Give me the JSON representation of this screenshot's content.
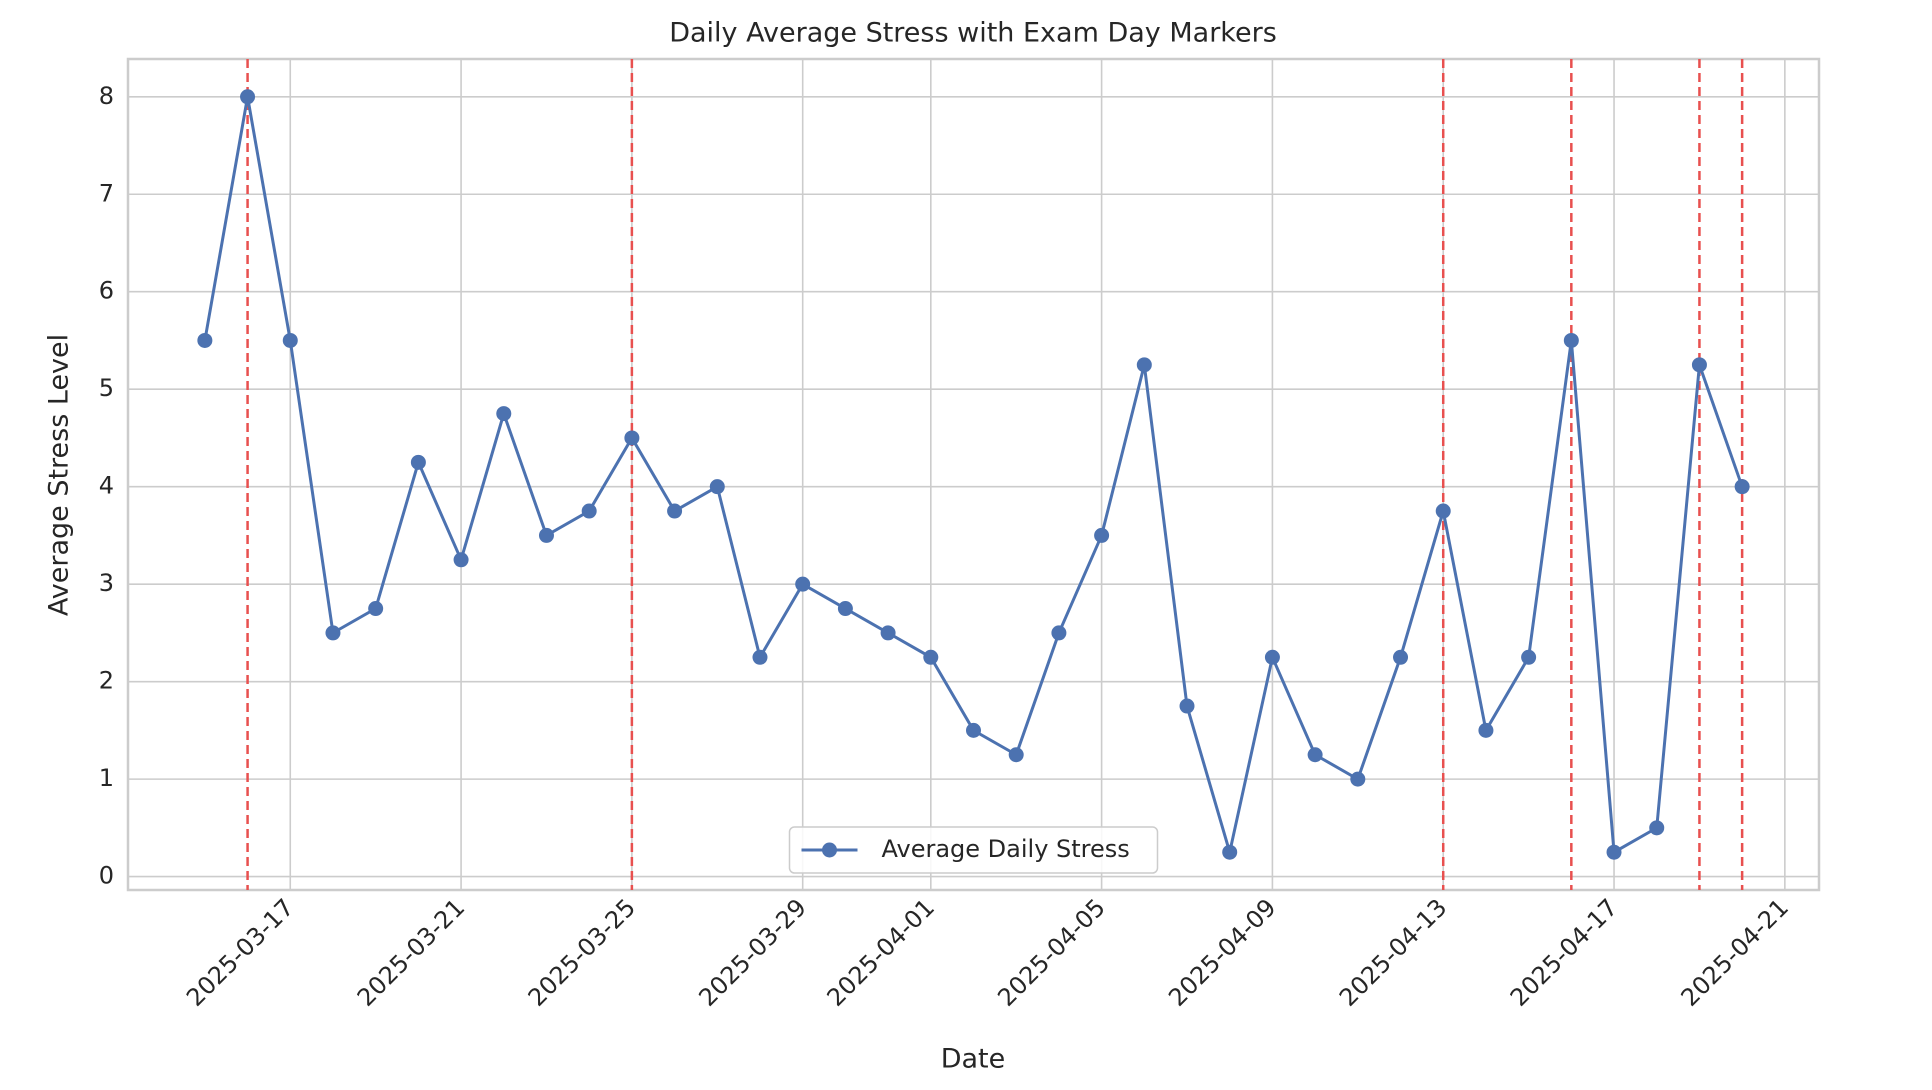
{
  "chart_data": {
    "type": "line",
    "title": "Daily Average Stress with Exam Day Markers",
    "xlabel": "Date",
    "ylabel": "Average Stress Level",
    "x": [
      "2025-03-15",
      "2025-03-16",
      "2025-03-17",
      "2025-03-18",
      "2025-03-19",
      "2025-03-20",
      "2025-03-21",
      "2025-03-22",
      "2025-03-23",
      "2025-03-24",
      "2025-03-25",
      "2025-03-26",
      "2025-03-27",
      "2025-03-28",
      "2025-03-29",
      "2025-03-30",
      "2025-03-31",
      "2025-04-01",
      "2025-04-02",
      "2025-04-03",
      "2025-04-04",
      "2025-04-05",
      "2025-04-06",
      "2025-04-07",
      "2025-04-08",
      "2025-04-09",
      "2025-04-10",
      "2025-04-11",
      "2025-04-12",
      "2025-04-13",
      "2025-04-14",
      "2025-04-15",
      "2025-04-16",
      "2025-04-17",
      "2025-04-18",
      "2025-04-19",
      "2025-04-20"
    ],
    "series": [
      {
        "name": "Average Daily Stress",
        "color": "#4c72b0",
        "values": [
          5.5,
          8.0,
          5.5,
          2.5,
          2.75,
          4.25,
          3.25,
          4.75,
          3.5,
          3.75,
          4.5,
          3.75,
          4.0,
          2.25,
          3.0,
          2.75,
          2.5,
          2.25,
          1.5,
          1.25,
          2.5,
          3.5,
          5.25,
          1.75,
          0.25,
          2.25,
          1.25,
          1.0,
          2.25,
          3.75,
          1.5,
          2.25,
          5.5,
          0.25,
          0.5,
          5.25,
          4.0
        ]
      }
    ],
    "exam_days": [
      "2025-03-16",
      "2025-03-25",
      "2025-04-13",
      "2025-04-16",
      "2025-04-19",
      "2025-04-20"
    ],
    "exam_color": "#e8504f",
    "xlim": [
      "2025-03-13T04:48:00Z",
      "2025-04-21T19:12:00Z"
    ],
    "xticks": [
      "2025-03-17",
      "2025-03-21",
      "2025-03-25",
      "2025-03-29",
      "2025-04-01",
      "2025-04-05",
      "2025-04-09",
      "2025-04-13",
      "2025-04-17",
      "2025-04-21"
    ],
    "ylim": [
      -0.1375,
      8.3875
    ],
    "yticks": [
      0,
      1,
      2,
      3,
      4,
      5,
      6,
      7,
      8
    ],
    "grid": true,
    "legend": "lower center"
  }
}
